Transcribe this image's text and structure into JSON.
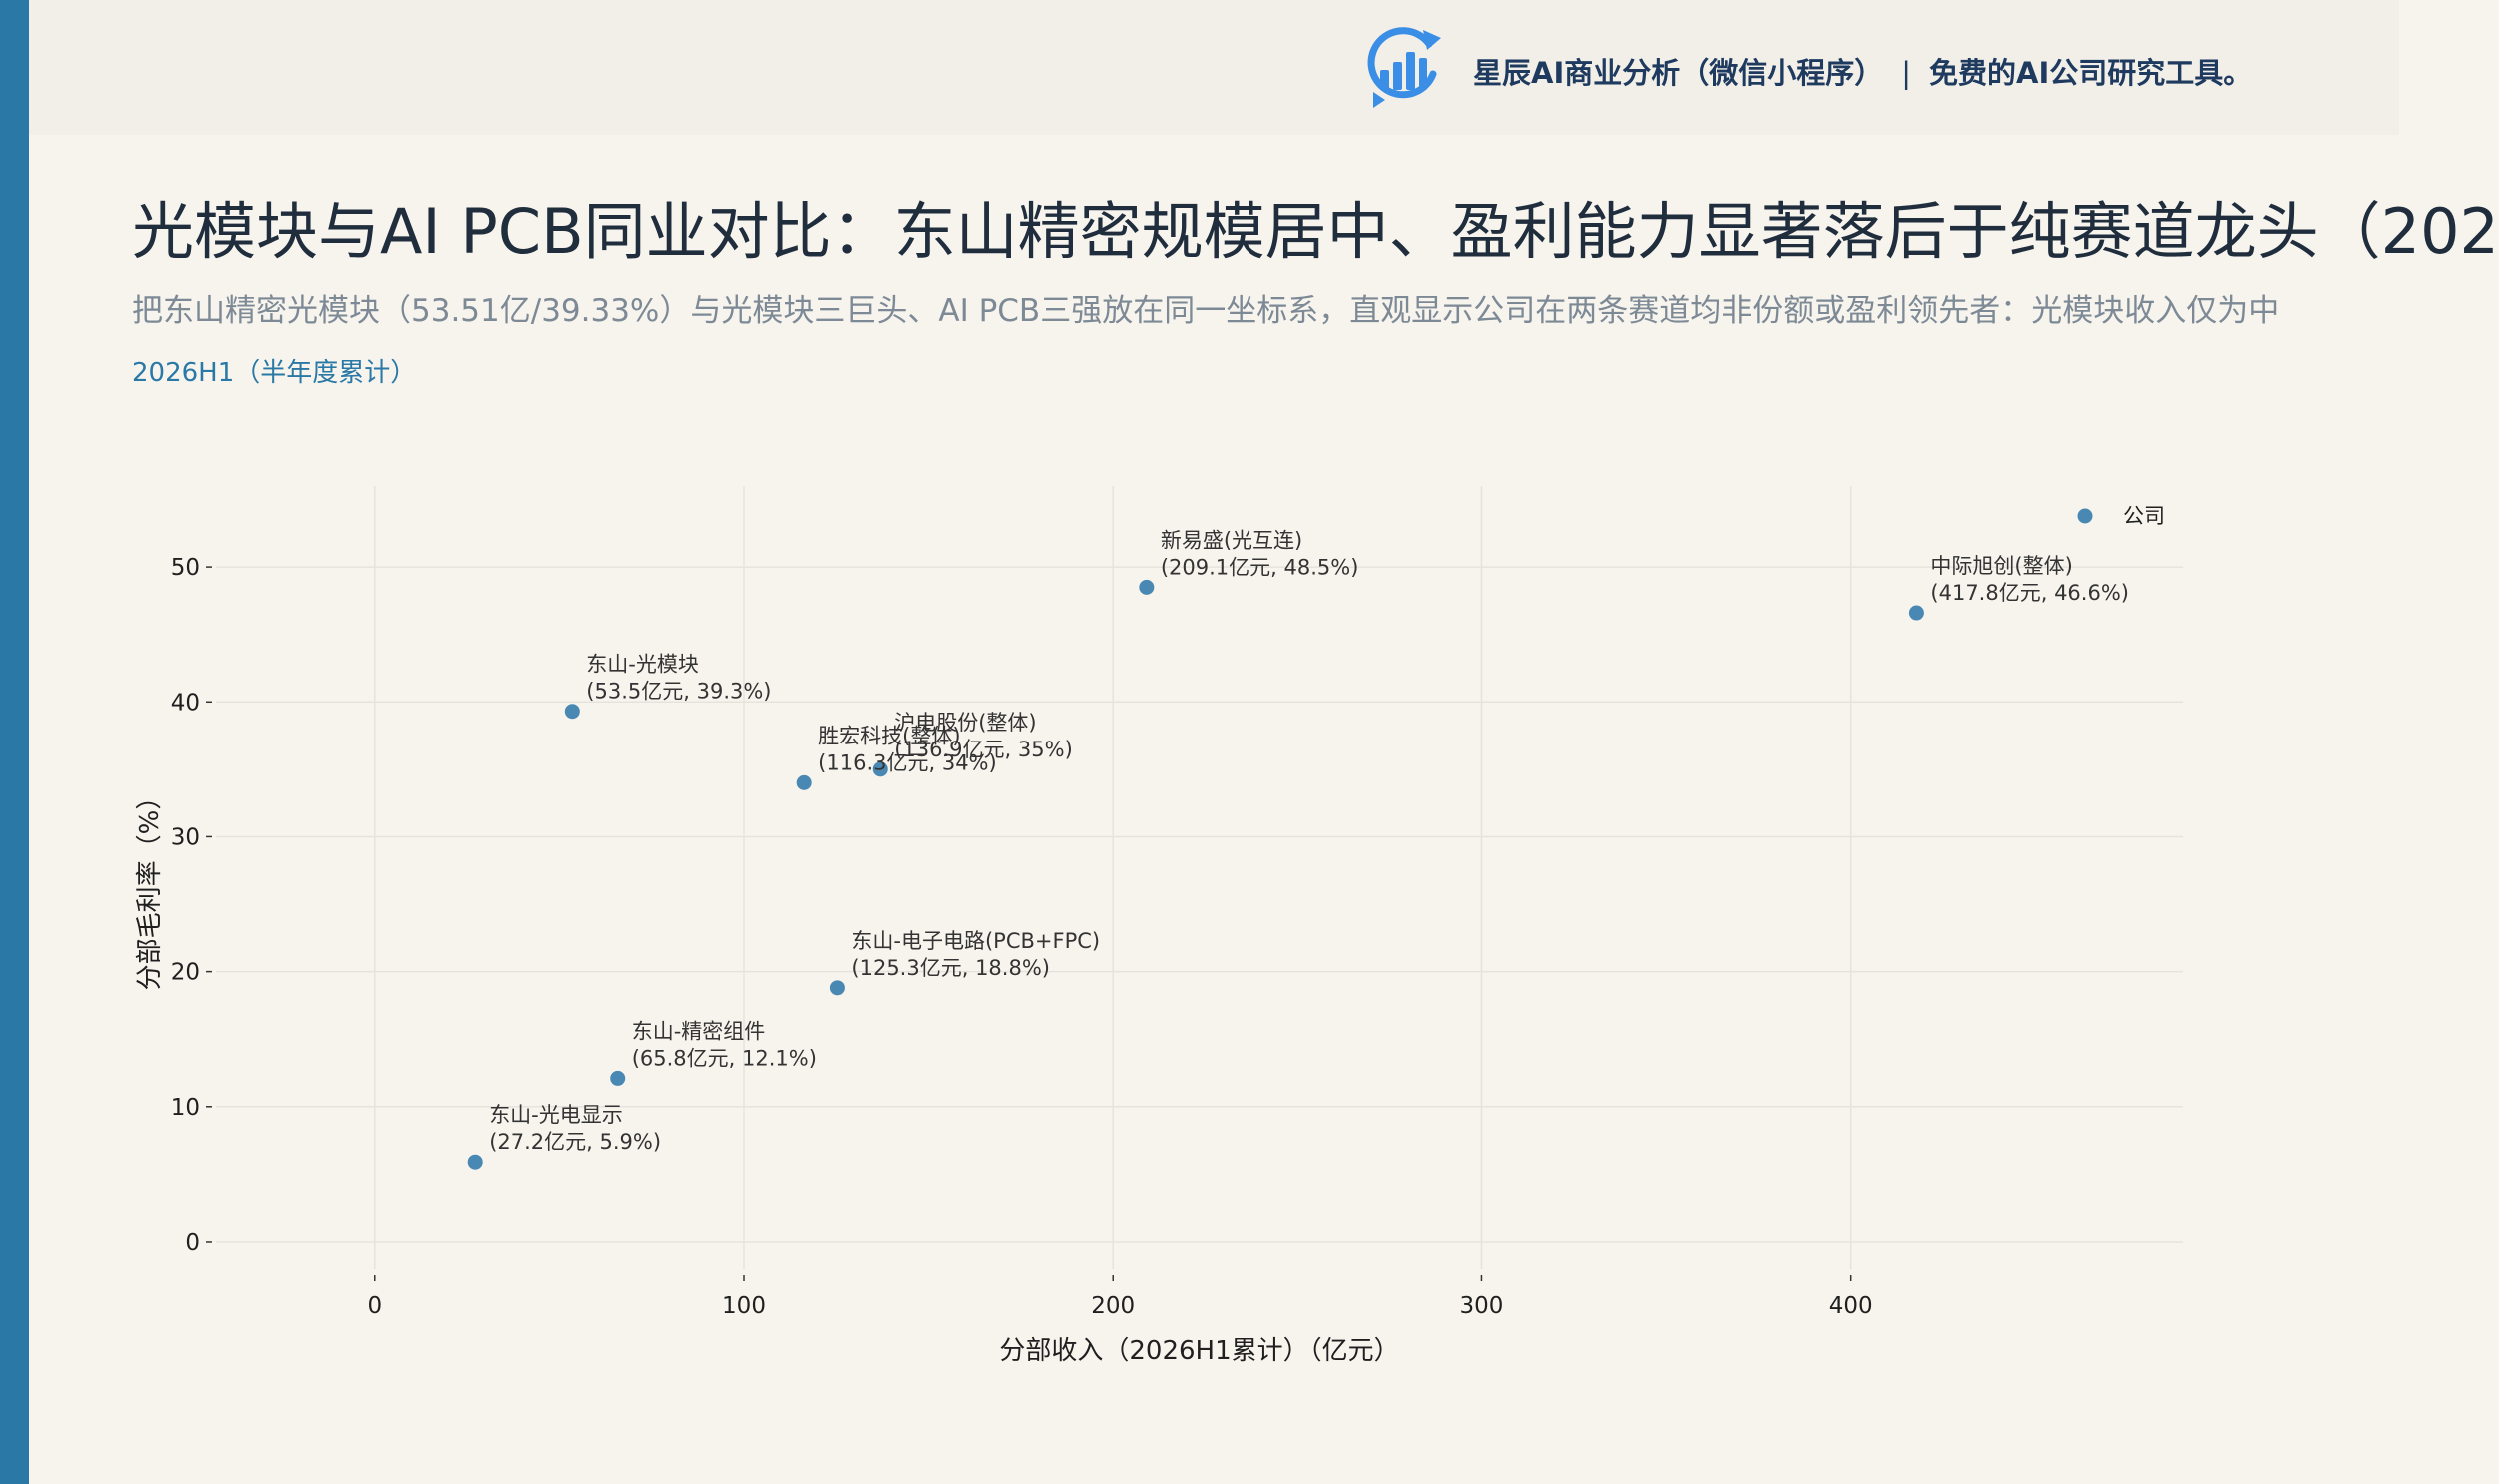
{
  "header": {
    "brand_name": "星辰AI商业分析（微信小程序）",
    "separator": "|",
    "tagline": "免费的AI公司研究工具。",
    "logo_icon": "bar-chart-cycle-icon"
  },
  "title": "光模块与AI PCB同业对比：东山精密规模居中、盈利能力显著落后于纯赛道龙头（202",
  "subtitle": "把东山精密光模块（53.51亿/39.33%）与光模块三巨头、AI PCB三强放在同一坐标系，直观显示公司在两条赛道均非份额或盈利领先者：光模块收入仅为中",
  "period": "2026H1（半年度累计）",
  "colors": {
    "accent": "#2a78a6",
    "point": "#4a88b4",
    "title": "#1f2d3d",
    "subtitle": "#7d8a96",
    "grid": "#e6e3dd"
  },
  "chart_data": {
    "type": "scatter",
    "xlabel": "分部收入（2026H1累计）（亿元）",
    "ylabel": "分部毛利率（%）",
    "xlim": [
      -43,
      490
    ],
    "ylim": [
      -2,
      56
    ],
    "xticks": [
      0,
      100,
      200,
      300,
      400
    ],
    "yticks": [
      0,
      10,
      20,
      30,
      40,
      50
    ],
    "grid": true,
    "legend": {
      "position": "top-right",
      "entries": [
        "公司"
      ]
    },
    "series": [
      {
        "name": "公司",
        "points": [
          {
            "name": "东山-光模块",
            "value_label": "(53.5亿元, 39.3%)",
            "x": 53.5,
            "y": 39.3
          },
          {
            "name": "东山-电子电路(PCB+FPC)",
            "value_label": "(125.3亿元, 18.8%)",
            "x": 125.3,
            "y": 18.8
          },
          {
            "name": "东山-精密组件",
            "value_label": "(65.8亿元, 12.1%)",
            "x": 65.8,
            "y": 12.1
          },
          {
            "name": "东山-光电显示",
            "value_label": "(27.2亿元, 5.9%)",
            "x": 27.2,
            "y": 5.9
          },
          {
            "name": "中际旭创(整体)",
            "value_label": "(417.8亿元, 46.6%)",
            "x": 417.8,
            "y": 46.6
          },
          {
            "name": "新易盛(光互连)",
            "value_label": "(209.1亿元, 48.5%)",
            "x": 209.1,
            "y": 48.5
          },
          {
            "name": "沪电股份(整体)",
            "value_label": "(136.9亿元, 35%)",
            "x": 136.9,
            "y": 35
          },
          {
            "name": "胜宏科技(整体)",
            "value_label": "(116.3亿元, 34%)",
            "x": 116.3,
            "y": 34
          }
        ]
      }
    ]
  }
}
